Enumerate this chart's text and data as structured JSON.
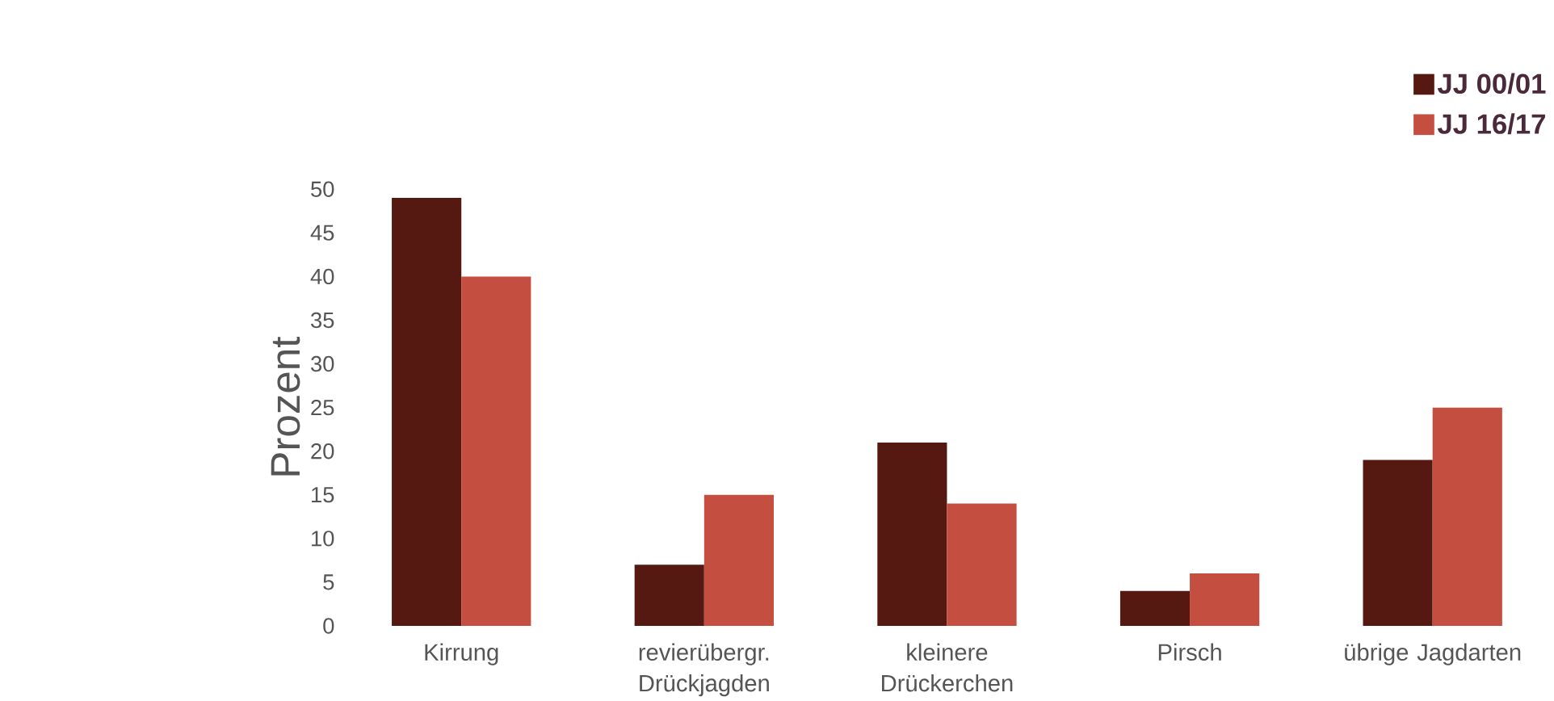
{
  "chart_data": {
    "type": "bar",
    "ylabel": "Prozent",
    "categories": [
      "Kirrung",
      "revierübergr. Drückjagden",
      "kleinere Drückerchen",
      "Pirsch",
      "übrige Jagdarten"
    ],
    "series": [
      {
        "name": "JJ 00/01",
        "color": "#561911",
        "values": [
          49,
          7,
          21,
          4,
          19
        ]
      },
      {
        "name": "JJ 16/17",
        "color": "#c44e3f",
        "values": [
          40,
          15,
          14,
          6,
          25
        ]
      }
    ],
    "ylim": [
      0,
      50
    ],
    "yticks": [
      0,
      5,
      10,
      15,
      20,
      25,
      30,
      35,
      40,
      45,
      50
    ],
    "legend": "top right"
  }
}
